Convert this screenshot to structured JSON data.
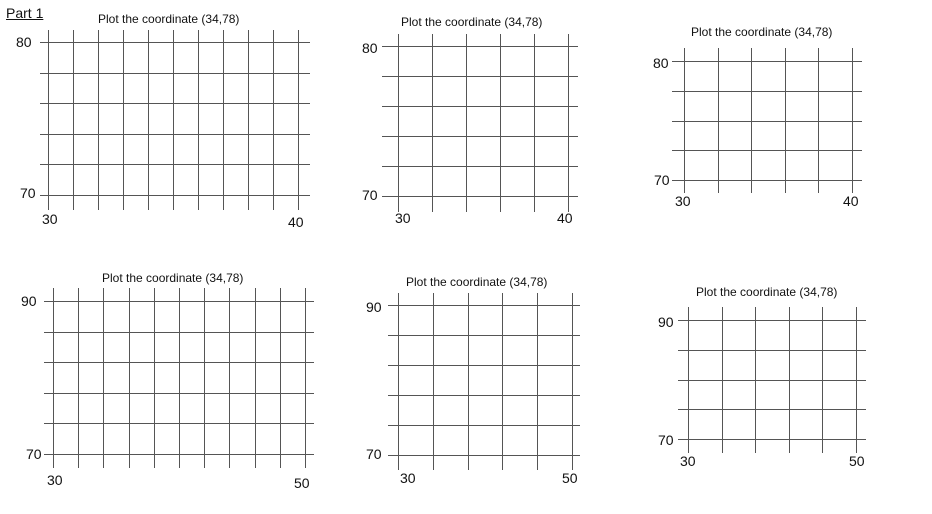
{
  "header": {
    "label": "Part 1"
  },
  "chart_data": [
    {
      "type": "grid",
      "title": "Plot the coordinate (34,78)",
      "x_labels": [
        "30",
        "40"
      ],
      "y_labels": [
        "80",
        "70"
      ],
      "xlim": [
        30,
        40
      ],
      "ylim": [
        70,
        80
      ],
      "vertical_lines": 11,
      "horizontal_lines": 6,
      "grid": true
    },
    {
      "type": "grid",
      "title": "Plot the coordinate (34,78)",
      "x_labels": [
        "30",
        "40"
      ],
      "y_labels": [
        "80",
        "70"
      ],
      "xlim": [
        30,
        40
      ],
      "ylim": [
        70,
        80
      ],
      "vertical_lines": 6,
      "horizontal_lines": 6,
      "grid": true
    },
    {
      "type": "grid",
      "title": "Plot the coordinate (34,78)",
      "x_labels": [
        "30",
        "40"
      ],
      "y_labels": [
        "80",
        "70"
      ],
      "xlim": [
        30,
        40
      ],
      "ylim": [
        70,
        80
      ],
      "vertical_lines": 6,
      "horizontal_lines": 5,
      "grid": true
    },
    {
      "type": "grid",
      "title": "Plot the coordinate (34,78)",
      "x_labels": [
        "30",
        "50"
      ],
      "y_labels": [
        "90",
        "70"
      ],
      "xlim": [
        30,
        50
      ],
      "ylim": [
        70,
        90
      ],
      "vertical_lines": 11,
      "horizontal_lines": 6,
      "grid": true
    },
    {
      "type": "grid",
      "title": "Plot the coordinate (34,78)",
      "x_labels": [
        "30",
        "50"
      ],
      "y_labels": [
        "90",
        "70"
      ],
      "xlim": [
        30,
        50
      ],
      "ylim": [
        70,
        90
      ],
      "vertical_lines": 6,
      "horizontal_lines": 6,
      "grid": true
    },
    {
      "type": "grid",
      "title": "Plot the coordinate (34,78)",
      "x_labels": [
        "30",
        "50"
      ],
      "y_labels": [
        "90",
        "70"
      ],
      "xlim": [
        30,
        50
      ],
      "ylim": [
        70,
        90
      ],
      "vertical_lines": 6,
      "horizontal_lines": 5,
      "grid": true
    }
  ]
}
